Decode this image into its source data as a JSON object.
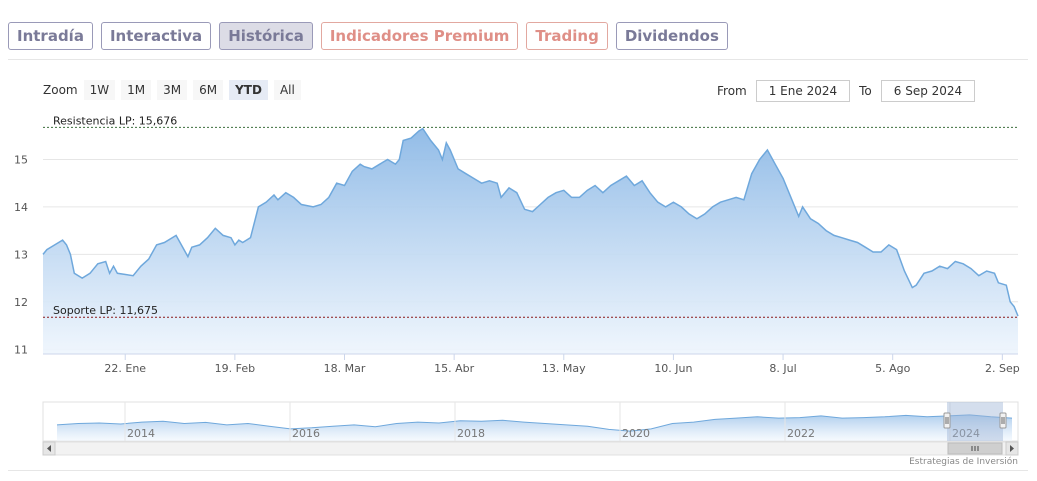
{
  "tabs": [
    {
      "label": "Intradía",
      "style": "normal"
    },
    {
      "label": "Interactiva",
      "style": "normal"
    },
    {
      "label": "Histórica",
      "style": "active"
    },
    {
      "label": "Indicadores Premium",
      "style": "premium"
    },
    {
      "label": "Trading",
      "style": "premium"
    },
    {
      "label": "Dividendos",
      "style": "normal"
    }
  ],
  "zoom": {
    "label": "Zoom",
    "buttons": [
      {
        "label": "1W",
        "selected": false
      },
      {
        "label": "1M",
        "selected": false
      },
      {
        "label": "3M",
        "selected": false
      },
      {
        "label": "6M",
        "selected": false
      },
      {
        "label": "YTD",
        "selected": true
      },
      {
        "label": "All",
        "selected": false
      }
    ]
  },
  "range": {
    "from_label": "From",
    "from_value": "1 Ene 2024",
    "to_label": "To",
    "to_value": "6 Sep 2024"
  },
  "credit": "Estrategias de Inversión",
  "colors": {
    "line": "#6fa8dc",
    "fill_top": "#8db9e6",
    "fill_bottom": "#eef5fd",
    "resistance": "#3c6e3c",
    "support": "#8b1a1a"
  },
  "navigator_labels": [
    "2014",
    "2016",
    "2018",
    "2020",
    "2022",
    "2024"
  ],
  "chart_data": {
    "type": "area",
    "x_start": "2024-01-01",
    "x_end": "2024-09-06",
    "y_ticks": [
      11,
      12,
      13,
      14,
      15
    ],
    "ylim": [
      10.9,
      16.0
    ],
    "x_ticks": [
      {
        "date": "2024-01-22",
        "label": "22. Ene"
      },
      {
        "date": "2024-02-19",
        "label": "19. Feb"
      },
      {
        "date": "2024-03-18",
        "label": "18. Mar"
      },
      {
        "date": "2024-04-15",
        "label": "15. Abr"
      },
      {
        "date": "2024-05-13",
        "label": "13. May"
      },
      {
        "date": "2024-06-10",
        "label": "10. Jun"
      },
      {
        "date": "2024-07-08",
        "label": "8. Jul"
      },
      {
        "date": "2024-08-05",
        "label": "5. Ago"
      },
      {
        "date": "2024-09-02",
        "label": "2. Sep"
      }
    ],
    "resistance": {
      "label": "Resistencia LP: 15,676",
      "value": 15.676
    },
    "support": {
      "label": "Soporte LP: 11,675",
      "value": 11.675
    },
    "series": [
      {
        "points": [
          [
            "2024-01-01",
            13.0
          ],
          [
            "2024-01-02",
            13.1
          ],
          [
            "2024-01-04",
            13.2
          ],
          [
            "2024-01-06",
            13.3
          ],
          [
            "2024-01-07",
            13.2
          ],
          [
            "2024-01-08",
            13.0
          ],
          [
            "2024-01-09",
            12.6
          ],
          [
            "2024-01-11",
            12.5
          ],
          [
            "2024-01-13",
            12.6
          ],
          [
            "2024-01-15",
            12.8
          ],
          [
            "2024-01-17",
            12.85
          ],
          [
            "2024-01-18",
            12.6
          ],
          [
            "2024-01-19",
            12.75
          ],
          [
            "2024-01-20",
            12.6
          ],
          [
            "2024-01-24",
            12.55
          ],
          [
            "2024-01-26",
            12.75
          ],
          [
            "2024-01-28",
            12.9
          ],
          [
            "2024-01-30",
            13.2
          ],
          [
            "2024-02-01",
            13.25
          ],
          [
            "2024-02-04",
            13.4
          ],
          [
            "2024-02-06",
            13.1
          ],
          [
            "2024-02-07",
            12.95
          ],
          [
            "2024-02-08",
            13.15
          ],
          [
            "2024-02-10",
            13.2
          ],
          [
            "2024-02-12",
            13.35
          ],
          [
            "2024-02-14",
            13.55
          ],
          [
            "2024-02-16",
            13.4
          ],
          [
            "2024-02-18",
            13.35
          ],
          [
            "2024-02-19",
            13.2
          ],
          [
            "2024-02-20",
            13.3
          ],
          [
            "2024-02-21",
            13.25
          ],
          [
            "2024-02-23",
            13.35
          ],
          [
            "2024-02-25",
            14.0
          ],
          [
            "2024-02-27",
            14.1
          ],
          [
            "2024-02-29",
            14.25
          ],
          [
            "2024-03-01",
            14.15
          ],
          [
            "2024-03-03",
            14.3
          ],
          [
            "2024-03-05",
            14.2
          ],
          [
            "2024-03-07",
            14.05
          ],
          [
            "2024-03-10",
            14.0
          ],
          [
            "2024-03-12",
            14.05
          ],
          [
            "2024-03-14",
            14.2
          ],
          [
            "2024-03-16",
            14.5
          ],
          [
            "2024-03-18",
            14.45
          ],
          [
            "2024-03-20",
            14.75
          ],
          [
            "2024-03-22",
            14.9
          ],
          [
            "2024-03-23",
            14.85
          ],
          [
            "2024-03-25",
            14.8
          ],
          [
            "2024-03-27",
            14.9
          ],
          [
            "2024-03-29",
            15.0
          ],
          [
            "2024-03-31",
            14.9
          ],
          [
            "2024-04-01",
            15.0
          ],
          [
            "2024-04-02",
            15.4
          ],
          [
            "2024-04-04",
            15.45
          ],
          [
            "2024-04-06",
            15.6
          ],
          [
            "2024-04-07",
            15.65
          ],
          [
            "2024-04-09",
            15.4
          ],
          [
            "2024-04-11",
            15.2
          ],
          [
            "2024-04-12",
            15.0
          ],
          [
            "2024-04-13",
            15.35
          ],
          [
            "2024-04-14",
            15.2
          ],
          [
            "2024-04-16",
            14.8
          ],
          [
            "2024-04-18",
            14.7
          ],
          [
            "2024-04-20",
            14.6
          ],
          [
            "2024-04-22",
            14.5
          ],
          [
            "2024-04-24",
            14.55
          ],
          [
            "2024-04-26",
            14.5
          ],
          [
            "2024-04-27",
            14.2
          ],
          [
            "2024-04-29",
            14.4
          ],
          [
            "2024-05-01",
            14.3
          ],
          [
            "2024-05-03",
            13.95
          ],
          [
            "2024-05-05",
            13.9
          ],
          [
            "2024-05-07",
            14.05
          ],
          [
            "2024-05-09",
            14.2
          ],
          [
            "2024-05-11",
            14.3
          ],
          [
            "2024-05-13",
            14.35
          ],
          [
            "2024-05-15",
            14.2
          ],
          [
            "2024-05-17",
            14.2
          ],
          [
            "2024-05-19",
            14.35
          ],
          [
            "2024-05-21",
            14.45
          ],
          [
            "2024-05-23",
            14.3
          ],
          [
            "2024-05-25",
            14.45
          ],
          [
            "2024-05-27",
            14.55
          ],
          [
            "2024-05-29",
            14.65
          ],
          [
            "2024-05-31",
            14.45
          ],
          [
            "2024-06-02",
            14.55
          ],
          [
            "2024-06-04",
            14.3
          ],
          [
            "2024-06-06",
            14.1
          ],
          [
            "2024-06-08",
            14.0
          ],
          [
            "2024-06-10",
            14.1
          ],
          [
            "2024-06-12",
            14.0
          ],
          [
            "2024-06-14",
            13.85
          ],
          [
            "2024-06-16",
            13.75
          ],
          [
            "2024-06-18",
            13.85
          ],
          [
            "2024-06-20",
            14.0
          ],
          [
            "2024-06-22",
            14.1
          ],
          [
            "2024-06-24",
            14.15
          ],
          [
            "2024-06-26",
            14.2
          ],
          [
            "2024-06-28",
            14.15
          ],
          [
            "2024-06-30",
            14.7
          ],
          [
            "2024-07-02",
            15.0
          ],
          [
            "2024-07-04",
            15.2
          ],
          [
            "2024-07-06",
            14.9
          ],
          [
            "2024-07-08",
            14.6
          ],
          [
            "2024-07-10",
            14.2
          ],
          [
            "2024-07-12",
            13.8
          ],
          [
            "2024-07-13",
            14.0
          ],
          [
            "2024-07-15",
            13.75
          ],
          [
            "2024-07-17",
            13.65
          ],
          [
            "2024-07-19",
            13.5
          ],
          [
            "2024-07-21",
            13.4
          ],
          [
            "2024-07-23",
            13.35
          ],
          [
            "2024-07-25",
            13.3
          ],
          [
            "2024-07-27",
            13.25
          ],
          [
            "2024-07-29",
            13.15
          ],
          [
            "2024-07-31",
            13.05
          ],
          [
            "2024-08-02",
            13.05
          ],
          [
            "2024-08-04",
            13.2
          ],
          [
            "2024-08-06",
            13.1
          ],
          [
            "2024-08-08",
            12.65
          ],
          [
            "2024-08-10",
            12.3
          ],
          [
            "2024-08-11",
            12.35
          ],
          [
            "2024-08-13",
            12.6
          ],
          [
            "2024-08-15",
            12.65
          ],
          [
            "2024-08-17",
            12.75
          ],
          [
            "2024-08-19",
            12.7
          ],
          [
            "2024-08-21",
            12.85
          ],
          [
            "2024-08-23",
            12.8
          ],
          [
            "2024-08-25",
            12.7
          ],
          [
            "2024-08-27",
            12.55
          ],
          [
            "2024-08-29",
            12.65
          ],
          [
            "2024-08-31",
            12.6
          ],
          [
            "2024-09-01",
            12.4
          ],
          [
            "2024-09-03",
            12.35
          ],
          [
            "2024-09-04",
            12.0
          ],
          [
            "2024-09-05",
            11.9
          ],
          [
            "2024-09-06",
            11.7
          ]
        ]
      }
    ]
  }
}
